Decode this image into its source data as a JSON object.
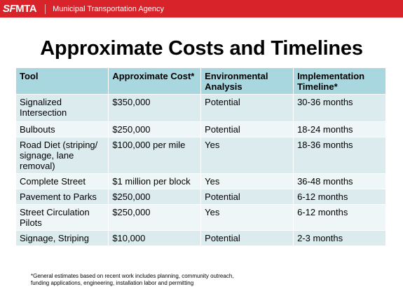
{
  "header": {
    "logo_text_sf": "SF",
    "logo_text_mta": "MTA",
    "agency_name": "Municipal Transportation Agency",
    "banner_color": "#d8232a"
  },
  "title": "Approximate Costs and Timelines",
  "table": {
    "columns": [
      "Tool",
      "Approximate Cost*",
      "Environmental Analysis",
      "Implementation Timeline*"
    ],
    "rows": [
      [
        "Signalized Intersection",
        "$350,000",
        "Potential",
        "30-36 months"
      ],
      [
        "Bulbouts",
        "$250,000",
        "Potential",
        "18-24 months"
      ],
      [
        "Road Diet (striping/ signage, lane removal)",
        "$100,000 per mile",
        "Yes",
        "18-36 months"
      ],
      [
        "Complete Street",
        "$1 million per block",
        "Yes",
        "36-48 months"
      ],
      [
        "Pavement to Parks",
        "$250,000",
        "Potential",
        "6-12 months"
      ],
      [
        "Street Circulation Pilots",
        "$250,000",
        "Yes",
        "6-12 months"
      ],
      [
        "Signage, Striping",
        "$10,000",
        "Potential",
        "2-3 months"
      ]
    ]
  },
  "footnote": {
    "line1": "*General estimates based on recent work includes planning, community outreach,",
    "line2": "funding applications,  engineering, installation labor and permitting"
  }
}
